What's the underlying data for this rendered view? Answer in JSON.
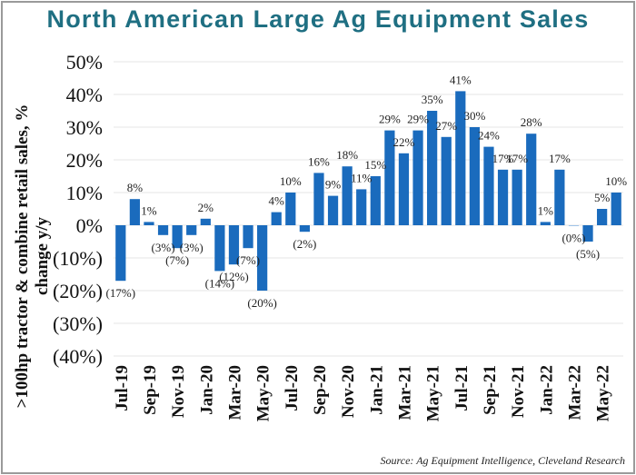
{
  "chart_data": {
    "type": "bar",
    "title": "North American Large Ag Equipment Sales",
    "ylabel": ">100hp tractor & combine retail sales, % change y/y",
    "xlabel": "",
    "source": "Source: Ag Equipment Intelligence, Cleveland Research",
    "ylim": [
      -40,
      50
    ],
    "yticks": [
      50,
      40,
      30,
      20,
      10,
      0,
      -10,
      -20,
      -30,
      -40
    ],
    "ytick_labels": [
      "50%",
      "40%",
      "30%",
      "20%",
      "10%",
      "0%",
      "(10%)",
      "(20%)",
      "(30%)",
      "(40%)"
    ],
    "grid": true,
    "bar_color": "#1a6bbd",
    "categories": [
      "Jul-19",
      "Aug-19",
      "Sep-19",
      "Oct-19",
      "Nov-19",
      "Dec-19",
      "Jan-20",
      "Feb-20",
      "Mar-20",
      "Apr-20",
      "May-20",
      "Jun-20",
      "Jul-20",
      "Aug-20",
      "Sep-20",
      "Oct-20",
      "Nov-20",
      "Dec-20",
      "Jan-21",
      "Feb-21",
      "Mar-21",
      "Apr-21",
      "May-21",
      "Jun-21",
      "Jul-21",
      "Aug-21",
      "Sep-21",
      "Oct-21",
      "Nov-21",
      "Dec-21",
      "Jan-22",
      "Feb-22",
      "Mar-22",
      "Apr-22",
      "May-22",
      "Jun-22"
    ],
    "xtick_labels": [
      "Jul-19",
      "Sep-19",
      "Nov-19",
      "Jan-20",
      "Mar-20",
      "May-20",
      "Jul-20",
      "Sep-20",
      "Nov-20",
      "Jan-21",
      "Mar-21",
      "May-21",
      "Jul-21",
      "Sep-21",
      "Nov-21",
      "Jan-22",
      "Mar-22",
      "May-22"
    ],
    "values": [
      -17,
      8,
      1,
      -3,
      -7,
      -3,
      2,
      -14,
      -12,
      -7,
      -20,
      4,
      10,
      -2,
      16,
      9,
      18,
      11,
      15,
      29,
      22,
      29,
      35,
      27,
      41,
      30,
      24,
      17,
      17,
      28,
      1,
      17,
      -0.2,
      -5,
      5,
      10
    ],
    "data_labels": [
      "(17%)",
      "8%",
      "1%",
      "(3%)",
      "(7%)",
      "(3%)",
      "2%",
      "(14%)",
      "(12%)",
      "(7%)",
      "(20%)",
      "4%",
      "10%",
      "(2%)",
      "16%",
      "9%",
      "18%",
      "11%",
      "15%",
      "29%",
      "22%",
      "29%",
      "35%",
      "27%",
      "41%",
      "30%",
      "24%",
      "17%",
      "17%",
      "28%",
      "1%",
      "17%",
      "(0%)",
      "(5%)",
      "5%",
      "10%"
    ]
  }
}
